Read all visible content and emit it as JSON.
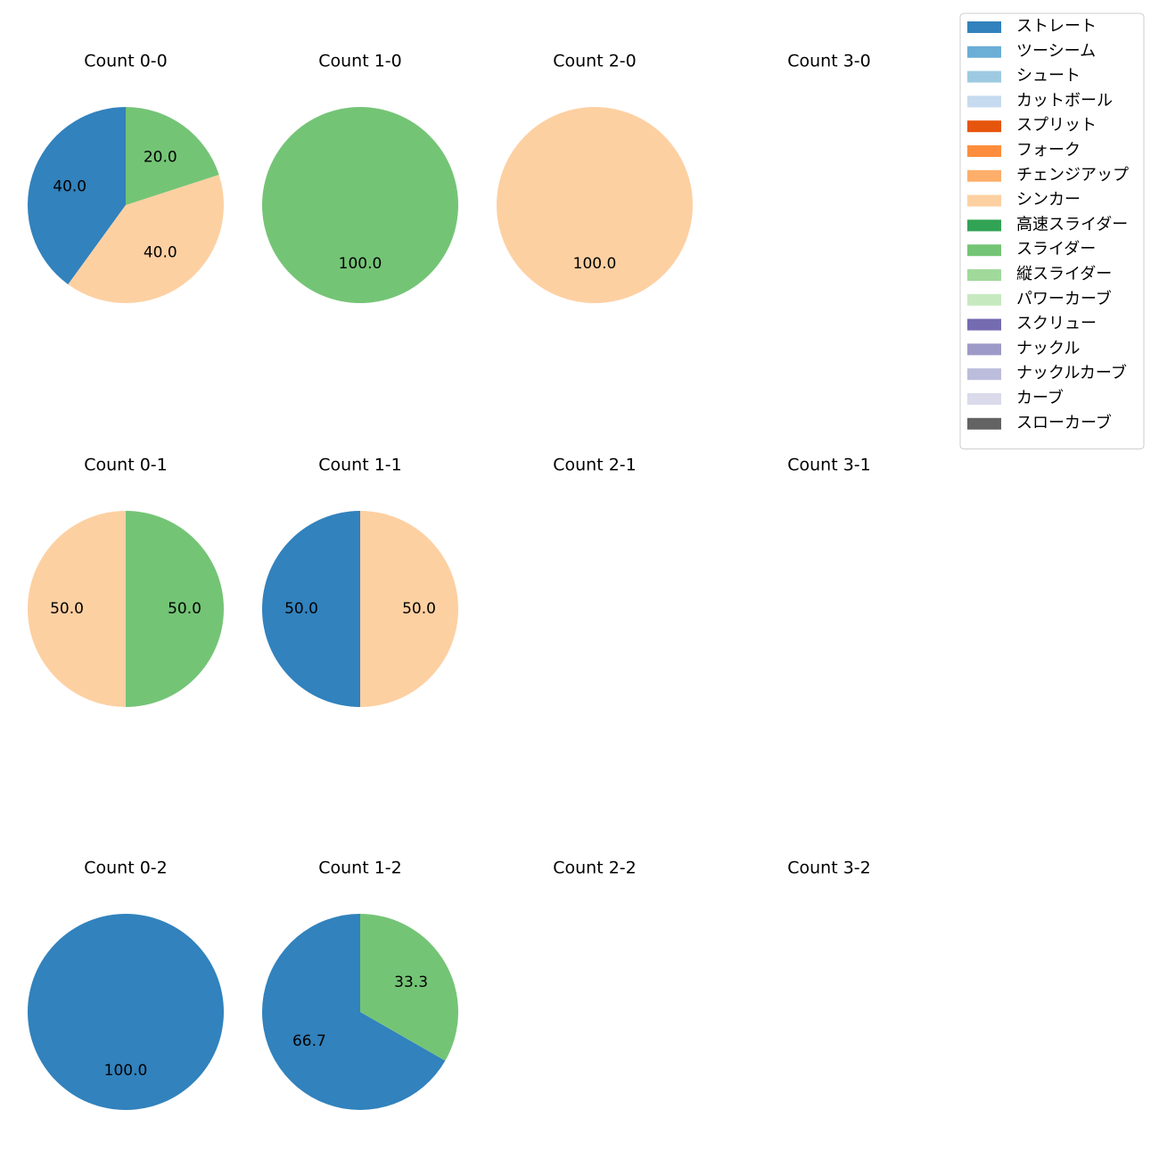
{
  "chart_data": {
    "type": "pie",
    "legend_position": "top-right",
    "legend": [
      {
        "label": "ストレート",
        "color": "#3182bd"
      },
      {
        "label": "ツーシーム",
        "color": "#6baed6"
      },
      {
        "label": "シュート",
        "color": "#9ecae1"
      },
      {
        "label": "カットボール",
        "color": "#c6dbef"
      },
      {
        "label": "スプリット",
        "color": "#e6550d"
      },
      {
        "label": "フォーク",
        "color": "#fd8d3c"
      },
      {
        "label": "チェンジアップ",
        "color": "#fdae6b"
      },
      {
        "label": "シンカー",
        "color": "#fdd0a2"
      },
      {
        "label": "高速スライダー",
        "color": "#31a354"
      },
      {
        "label": "スライダー",
        "color": "#74c476"
      },
      {
        "label": "縦スライダー",
        "color": "#a1d99b"
      },
      {
        "label": "パワーカーブ",
        "color": "#c7e9c0"
      },
      {
        "label": "スクリュー",
        "color": "#756bb1"
      },
      {
        "label": "ナックル",
        "color": "#9e9ac8"
      },
      {
        "label": "ナックルカーブ",
        "color": "#bcbddc"
      },
      {
        "label": "カーブ",
        "color": "#dadaeb"
      },
      {
        "label": "スローカーブ",
        "color": "#636363"
      }
    ],
    "panels": [
      {
        "title": "Count 0-0",
        "slices": [
          {
            "pitch": "ストレート",
            "value": 40.0,
            "label": "40.0"
          },
          {
            "pitch": "シンカー",
            "value": 40.0,
            "label": "40.0"
          },
          {
            "pitch": "スライダー",
            "value": 20.0,
            "label": "20.0"
          }
        ]
      },
      {
        "title": "Count 1-0",
        "slices": [
          {
            "pitch": "スライダー",
            "value": 100.0,
            "label": "100.0"
          }
        ]
      },
      {
        "title": "Count 2-0",
        "slices": [
          {
            "pitch": "シンカー",
            "value": 100.0,
            "label": "100.0"
          }
        ]
      },
      {
        "title": "Count 3-0",
        "slices": []
      },
      {
        "title": "Count 0-1",
        "slices": [
          {
            "pitch": "シンカー",
            "value": 50.0,
            "label": "50.0"
          },
          {
            "pitch": "スライダー",
            "value": 50.0,
            "label": "50.0"
          }
        ]
      },
      {
        "title": "Count 1-1",
        "slices": [
          {
            "pitch": "ストレート",
            "value": 50.0,
            "label": "50.0"
          },
          {
            "pitch": "シンカー",
            "value": 50.0,
            "label": "50.0"
          }
        ]
      },
      {
        "title": "Count 2-1",
        "slices": []
      },
      {
        "title": "Count 3-1",
        "slices": []
      },
      {
        "title": "Count 0-2",
        "slices": [
          {
            "pitch": "ストレート",
            "value": 100.0,
            "label": "100.0"
          }
        ]
      },
      {
        "title": "Count 1-2",
        "slices": [
          {
            "pitch": "ストレート",
            "value": 66.7,
            "label": "66.7"
          },
          {
            "pitch": "スライダー",
            "value": 33.3,
            "label": "33.3"
          }
        ]
      },
      {
        "title": "Count 2-2",
        "slices": []
      },
      {
        "title": "Count 3-2",
        "slices": []
      }
    ]
  }
}
